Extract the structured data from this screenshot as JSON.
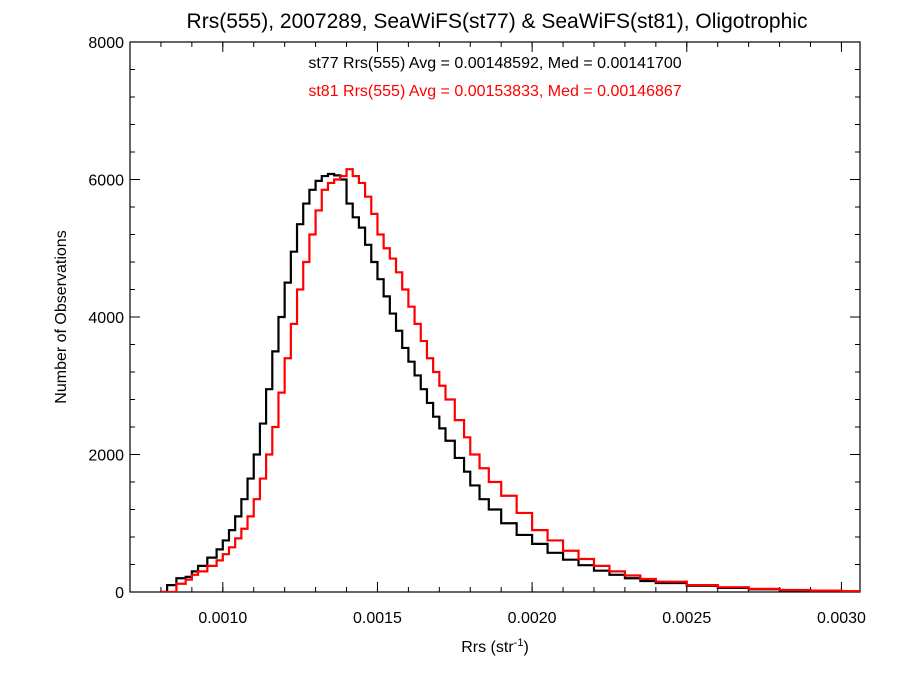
{
  "chart_data": {
    "type": "line",
    "title": "Rrs(555), 2007289, SeaWiFS(st77) & SeaWiFS(st81), Oligotrophic",
    "xlabel": {
      "main": "Rrs (str",
      "sup": "-1",
      "close": ")"
    },
    "ylabel": "Number of Observations",
    "xlim": [
      0.0007,
      0.00306
    ],
    "ylim": [
      0,
      8000
    ],
    "x_ticks": [
      0.001,
      0.0015,
      0.002,
      0.0025,
      0.003
    ],
    "x_tick_labels": [
      "0.0010",
      "0.0015",
      "0.0020",
      "0.0025",
      "0.0030"
    ],
    "y_ticks": [
      0,
      2000,
      4000,
      6000,
      8000
    ],
    "y_tick_labels": [
      "0",
      "2000",
      "4000",
      "6000",
      "8000"
    ],
    "x_minor_step": 0.0001,
    "y_minor_step": 400,
    "grid": false,
    "legend": "none",
    "annotations": [
      {
        "text": "st77 Rrs(555) Avg = 0.00148592, Med = 0.00141700",
        "color": "#000000"
      },
      {
        "text": "st81 Rrs(555) Avg = 0.00153833, Med = 0.00146867",
        "color": "#ff0000"
      }
    ],
    "series": [
      {
        "color": "#000000",
        "points": [
          [
            0.0008,
            0
          ],
          [
            0.00082,
            100
          ],
          [
            0.00085,
            200
          ],
          [
            0.00088,
            220
          ],
          [
            0.0009,
            300
          ],
          [
            0.00092,
            380
          ],
          [
            0.00095,
            500
          ],
          [
            0.00098,
            620
          ],
          [
            0.001,
            750
          ],
          [
            0.00102,
            900
          ],
          [
            0.00104,
            1100
          ],
          [
            0.00106,
            1350
          ],
          [
            0.00108,
            1650
          ],
          [
            0.0011,
            2000
          ],
          [
            0.00112,
            2450
          ],
          [
            0.00114,
            2950
          ],
          [
            0.00116,
            3500
          ],
          [
            0.00118,
            4000
          ],
          [
            0.0012,
            4500
          ],
          [
            0.00122,
            4950
          ],
          [
            0.00124,
            5350
          ],
          [
            0.00126,
            5650
          ],
          [
            0.00128,
            5850
          ],
          [
            0.0013,
            5980
          ],
          [
            0.00132,
            6050
          ],
          [
            0.00134,
            6080
          ],
          [
            0.00136,
            6060
          ],
          [
            0.00138,
            6000
          ],
          [
            0.0014,
            5650
          ],
          [
            0.00142,
            5450
          ],
          [
            0.00144,
            5300
          ],
          [
            0.00146,
            5050
          ],
          [
            0.00148,
            4800
          ],
          [
            0.0015,
            4550
          ],
          [
            0.00152,
            4300
          ],
          [
            0.00154,
            4050
          ],
          [
            0.00156,
            3800
          ],
          [
            0.00158,
            3550
          ],
          [
            0.0016,
            3350
          ],
          [
            0.00162,
            3150
          ],
          [
            0.00164,
            2950
          ],
          [
            0.00166,
            2750
          ],
          [
            0.00168,
            2550
          ],
          [
            0.0017,
            2380
          ],
          [
            0.00172,
            2200
          ],
          [
            0.00175,
            1950
          ],
          [
            0.00178,
            1750
          ],
          [
            0.0018,
            1550
          ],
          [
            0.00183,
            1350
          ],
          [
            0.00186,
            1200
          ],
          [
            0.0019,
            1000
          ],
          [
            0.00195,
            830
          ],
          [
            0.002,
            700
          ],
          [
            0.00205,
            570
          ],
          [
            0.0021,
            470
          ],
          [
            0.00215,
            390
          ],
          [
            0.0022,
            310
          ],
          [
            0.00225,
            250
          ],
          [
            0.0023,
            200
          ],
          [
            0.00235,
            160
          ],
          [
            0.0024,
            130
          ],
          [
            0.0025,
            90
          ],
          [
            0.0026,
            60
          ],
          [
            0.0027,
            40
          ],
          [
            0.0028,
            25
          ],
          [
            0.0029,
            15
          ],
          [
            0.003,
            10
          ],
          [
            0.00306,
            5
          ]
        ]
      },
      {
        "color": "#ff0000",
        "points": [
          [
            0.0008,
            0
          ],
          [
            0.00085,
            120
          ],
          [
            0.00088,
            180
          ],
          [
            0.0009,
            250
          ],
          [
            0.00092,
            300
          ],
          [
            0.00095,
            380
          ],
          [
            0.00098,
            460
          ],
          [
            0.001,
            550
          ],
          [
            0.00102,
            650
          ],
          [
            0.00104,
            780
          ],
          [
            0.00106,
            920
          ],
          [
            0.00108,
            1100
          ],
          [
            0.0011,
            1350
          ],
          [
            0.00112,
            1650
          ],
          [
            0.00114,
            2000
          ],
          [
            0.00116,
            2400
          ],
          [
            0.00118,
            2900
          ],
          [
            0.0012,
            3400
          ],
          [
            0.00122,
            3900
          ],
          [
            0.00124,
            4400
          ],
          [
            0.00126,
            4800
          ],
          [
            0.00128,
            5200
          ],
          [
            0.0013,
            5550
          ],
          [
            0.00132,
            5850
          ],
          [
            0.00134,
            5950
          ],
          [
            0.00136,
            6000
          ],
          [
            0.00138,
            6050
          ],
          [
            0.0014,
            6150
          ],
          [
            0.00142,
            6050
          ],
          [
            0.00144,
            5950
          ],
          [
            0.00146,
            5750
          ],
          [
            0.00148,
            5500
          ],
          [
            0.0015,
            5200
          ],
          [
            0.00152,
            5000
          ],
          [
            0.00154,
            4850
          ],
          [
            0.00156,
            4650
          ],
          [
            0.00158,
            4400
          ],
          [
            0.0016,
            4150
          ],
          [
            0.00162,
            3900
          ],
          [
            0.00164,
            3650
          ],
          [
            0.00166,
            3400
          ],
          [
            0.00168,
            3200
          ],
          [
            0.0017,
            3000
          ],
          [
            0.00172,
            2800
          ],
          [
            0.00175,
            2500
          ],
          [
            0.00178,
            2250
          ],
          [
            0.0018,
            2000
          ],
          [
            0.00183,
            1800
          ],
          [
            0.00186,
            1600
          ],
          [
            0.0019,
            1400
          ],
          [
            0.00195,
            1150
          ],
          [
            0.002,
            900
          ],
          [
            0.00205,
            750
          ],
          [
            0.0021,
            600
          ],
          [
            0.00215,
            480
          ],
          [
            0.0022,
            380
          ],
          [
            0.00225,
            300
          ],
          [
            0.0023,
            240
          ],
          [
            0.00235,
            190
          ],
          [
            0.0024,
            150
          ],
          [
            0.0025,
            100
          ],
          [
            0.0026,
            70
          ],
          [
            0.0027,
            45
          ],
          [
            0.0028,
            30
          ],
          [
            0.0029,
            20
          ],
          [
            0.003,
            12
          ],
          [
            0.00306,
            8
          ]
        ]
      }
    ]
  }
}
